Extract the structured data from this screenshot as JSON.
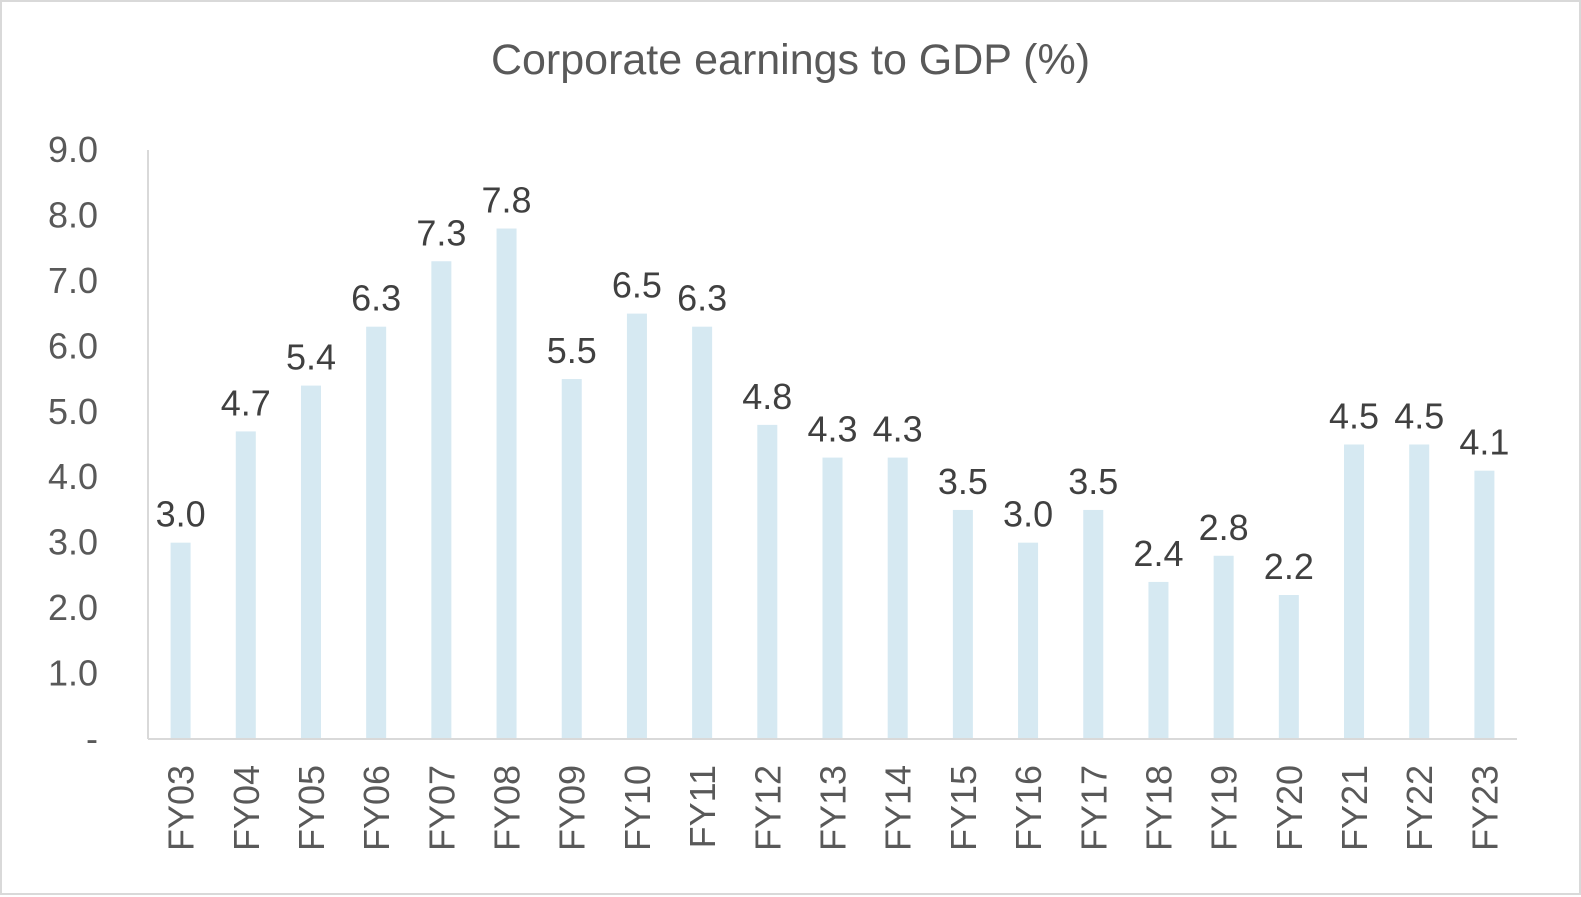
{
  "chart_data": {
    "type": "bar",
    "title": "Corporate earnings to GDP (%)",
    "xlabel": "",
    "ylabel": "",
    "categories": [
      "FY03",
      "FY04",
      "FY05",
      "FY06",
      "FY07",
      "FY08",
      "FY09",
      "FY10",
      "FY11",
      "FY12",
      "FY13",
      "FY14",
      "FY15",
      "FY16",
      "FY17",
      "FY18",
      "FY19",
      "FY20",
      "FY21",
      "FY22",
      "FY23"
    ],
    "values": [
      3.0,
      4.7,
      5.4,
      6.3,
      7.3,
      7.8,
      5.5,
      6.5,
      6.3,
      4.8,
      4.3,
      4.3,
      3.5,
      3.0,
      3.5,
      2.4,
      2.8,
      2.2,
      4.5,
      4.5,
      4.1
    ],
    "data_labels": [
      "3.0",
      "4.7",
      "5.4",
      "6.3",
      "7.3",
      "7.8",
      "5.5",
      "6.5",
      "6.3",
      "4.8",
      "4.3",
      "4.3",
      "3.5",
      "3.0",
      "3.5",
      "2.4",
      "2.8",
      "2.2",
      "4.5",
      "4.5",
      "4.1"
    ],
    "y_ticks": [
      0,
      1,
      2,
      3,
      4,
      5,
      6,
      7,
      8,
      9
    ],
    "y_tick_labels": [
      "-",
      "1.0",
      "2.0",
      "3.0",
      "4.0",
      "5.0",
      "6.0",
      "7.0",
      "8.0",
      "9.0"
    ],
    "ylim": [
      0,
      9
    ],
    "grid": false,
    "legend": "none",
    "bar_color": "#d6e9f2",
    "axis_color": "#d9d9d9"
  }
}
